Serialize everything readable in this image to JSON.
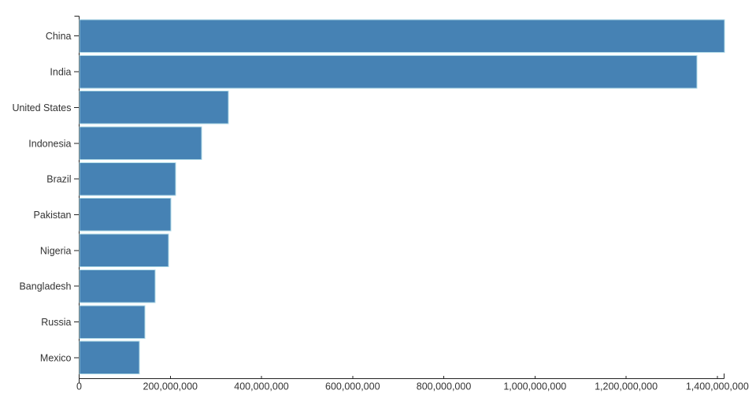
{
  "chart_data": {
    "type": "bar",
    "orientation": "horizontal",
    "title": "",
    "xlabel": "",
    "ylabel": "",
    "categories": [
      "China",
      "India",
      "United States",
      "Indonesia",
      "Brazil",
      "Pakistan",
      "Nigeria",
      "Bangladesh",
      "Russia",
      "Mexico"
    ],
    "values": [
      1415000000,
      1354000000,
      327000000,
      267000000,
      211000000,
      201000000,
      196000000,
      166000000,
      144000000,
      131000000
    ],
    "xlim": [
      0,
      1415000000
    ],
    "x_ticks": [
      0,
      200000000,
      400000000,
      600000000,
      800000000,
      1000000000,
      1200000000,
      1400000000
    ],
    "x_tick_labels": [
      "0",
      "200,000,000",
      "400,000,000",
      "600,000,000",
      "800,000,000",
      "1,000,000,000",
      "1,200,000,000",
      "1,400,000,000"
    ],
    "grid": false,
    "legend": false,
    "colors": {
      "bar_fill": "#4682b4",
      "bar_stroke": "#add8e6",
      "axis": "#222222",
      "label": "#333333",
      "background": "#ffffff"
    }
  }
}
